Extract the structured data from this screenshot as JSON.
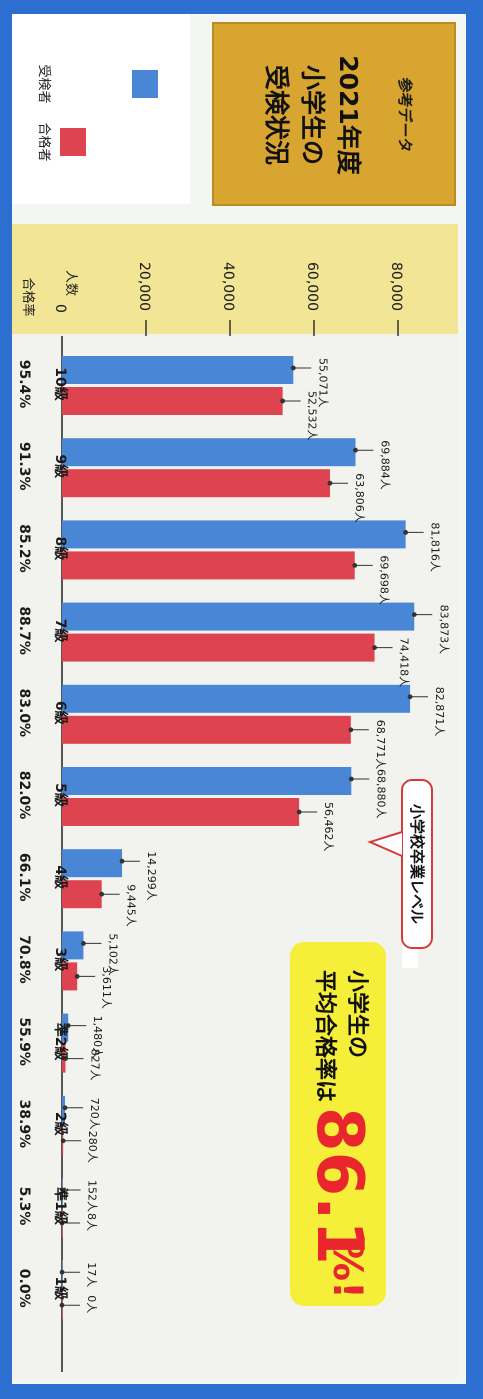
{
  "header": {
    "kicker": "参考データ",
    "title_line1": "2021年度",
    "title_line2": "小学生の",
    "title_line3": "受検状況"
  },
  "legend": {
    "applicants": "受検者",
    "passers": "合格者"
  },
  "axis": {
    "count_label": "人数",
    "rate_label": "合格率"
  },
  "colors": {
    "applicants": "#4a86d6",
    "passers": "#de4450",
    "frame": "#2d6fd0",
    "title_bg": "#d9a531",
    "callout_bg": "#f6ef3a",
    "callout_accent": "#e9252e"
  },
  "callout": {
    "line1": "小学生の",
    "line2": "平均合格率は",
    "value": "86.1",
    "suffix": "%!"
  },
  "annotation": {
    "text": "小学校卒業レベル"
  },
  "chart_data": {
    "type": "bar",
    "orientation": "horizontal",
    "categories": [
      "10級",
      "9級",
      "8級",
      "7級",
      "6級",
      "5級",
      "4級",
      "3級",
      "準2級",
      "2級",
      "準1級",
      "1級"
    ],
    "series": [
      {
        "name": "受検者",
        "values": [
          55071,
          69884,
          81816,
          83873,
          82871,
          68880,
          14299,
          5102,
          1480,
          720,
          152,
          17
        ],
        "labels": [
          "55,071人",
          "69,884人",
          "81,816人",
          "83,873人",
          "82,871人",
          "68,880人",
          "14,299人",
          "5,102人",
          "1,480人",
          "720人",
          "152人",
          "17人"
        ]
      },
      {
        "name": "合格者",
        "values": [
          52532,
          63806,
          69698,
          74418,
          68771,
          56462,
          9445,
          3611,
          827,
          280,
          8,
          0
        ],
        "labels": [
          "52,532人",
          "63,806人",
          "69,698人",
          "74,418人",
          "68,771人",
          "56,462人",
          "9,445人",
          "3,611人",
          "827人",
          "280人",
          "8人",
          "0人"
        ]
      }
    ],
    "pass_rates": [
      "95.4%",
      "91.3%",
      "85.2%",
      "88.7%",
      "83.0%",
      "82.0%",
      "66.1%",
      "70.8%",
      "55.9%",
      "38.9%",
      "5.3%",
      "0.0%"
    ],
    "ticks": [
      0,
      20000,
      40000,
      60000,
      80000
    ],
    "tick_labels": [
      "0",
      "20,000",
      "40,000",
      "60,000",
      "80,000"
    ],
    "xlim": [
      0,
      90000
    ],
    "grid": false,
    "legend_position": "top-left"
  }
}
